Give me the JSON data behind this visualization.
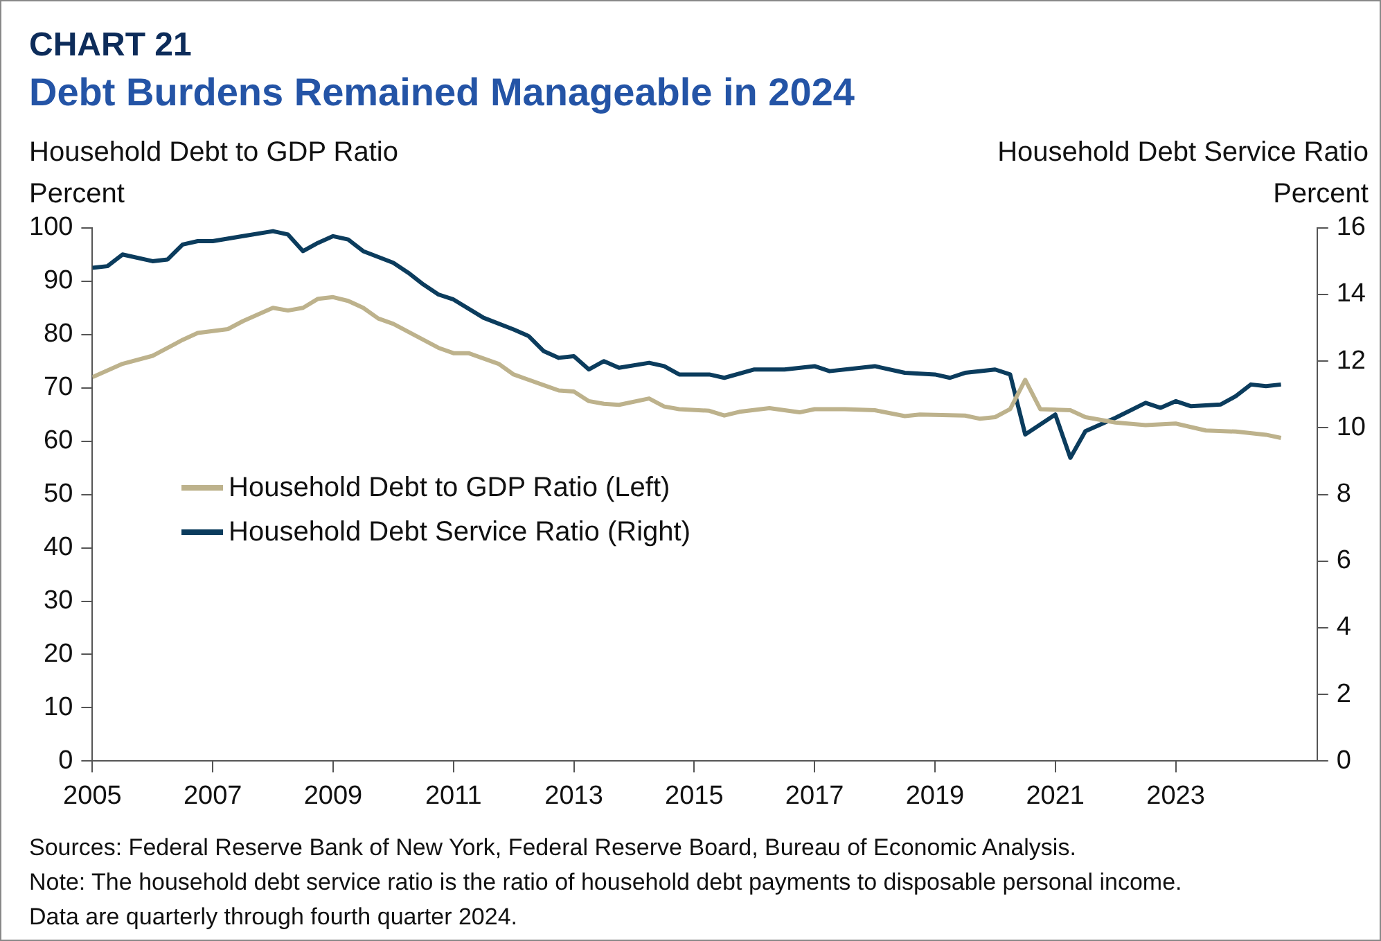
{
  "chart_data": {
    "type": "line",
    "title": "CHART 21",
    "subtitle": "Debt Burdens Remained Manageable in 2024",
    "ylabel": "Household Debt to GDP Ratio\nPercent",
    "y2label": "Household Debt Service Ratio\nPercent",
    "xlim": [
      2005,
      2025.35
    ],
    "xticks": [
      2005,
      2007,
      2009,
      2011,
      2013,
      2015,
      2017,
      2019,
      2021,
      2023
    ],
    "ylim": [
      0,
      100
    ],
    "yticks": [
      0,
      10,
      20,
      30,
      40,
      50,
      60,
      70,
      80,
      90,
      100
    ],
    "y2lim": [
      0,
      16
    ],
    "y2ticks": [
      0,
      2,
      4,
      6,
      8,
      10,
      12,
      14,
      16
    ],
    "grid": false,
    "legend": "left",
    "series": [
      {
        "name": "Household Debt to GDP Ratio (Left)",
        "color": "#bdb28c",
        "x": [
          2005,
          2005.5,
          2006,
          2006.5,
          2006.75,
          2007.25,
          2007.5,
          2008,
          2008.25,
          2008.5,
          2008.75,
          2009,
          2009.25,
          2009.5,
          2009.75,
          2010,
          2010.5,
          2010.75,
          2011,
          2011.25,
          2011.75,
          2012,
          2012.5,
          2012.75,
          2013,
          2013.25,
          2013.5,
          2013.75,
          2014.25,
          2014.5,
          2014.75,
          2015.25,
          2015.5,
          2015.75,
          2016.25,
          2016.75,
          2017,
          2017.5,
          2018,
          2018.5,
          2018.75,
          2019.5,
          2019.75,
          2020,
          2020.25,
          2020.5,
          2020.75,
          2021.25,
          2021.5,
          2022,
          2022.5,
          2023,
          2023.5,
          2024,
          2024.5,
          2024.75
        ],
        "values": [
          72,
          74.5,
          76,
          79,
          80.3,
          81,
          82.5,
          85,
          84.5,
          85,
          86.7,
          87,
          86.3,
          85,
          83,
          82,
          79,
          77.5,
          76.5,
          76.5,
          74.5,
          72.5,
          70.5,
          69.5,
          69.3,
          67.5,
          67,
          66.8,
          68,
          66.5,
          66,
          65.7,
          64.8,
          65.5,
          66.2,
          65.4,
          66,
          66,
          65.8,
          64.7,
          65,
          64.8,
          64.2,
          64.5,
          66,
          71.5,
          66,
          65.8,
          64.5,
          63.5,
          63,
          63.3,
          62,
          61.8,
          61.2,
          60.6
        ]
      },
      {
        "name": "Household Debt Service Ratio (Right)",
        "color": "#0b3c5d",
        "axis": "y2",
        "x": [
          2005,
          2005.25,
          2005.5,
          2006,
          2006.25,
          2006.5,
          2006.75,
          2007,
          2007.5,
          2008,
          2008.25,
          2008.5,
          2008.75,
          2009,
          2009.25,
          2009.5,
          2010,
          2010.25,
          2010.5,
          2010.75,
          2011,
          2011.5,
          2012,
          2012.25,
          2012.5,
          2012.75,
          2013,
          2013.25,
          2013.5,
          2013.75,
          2014.25,
          2014.5,
          2014.75,
          2015.25,
          2015.5,
          2016,
          2016.5,
          2017,
          2017.25,
          2018,
          2018.5,
          2019,
          2019.25,
          2019.5,
          2020,
          2020.25,
          2020.5,
          2021,
          2021.25,
          2021.5,
          2022,
          2022.5,
          2022.75,
          2023,
          2023.25,
          2023.75,
          2024,
          2024.25,
          2024.5,
          2024.75
        ],
        "values": [
          14.8,
          14.85,
          15.2,
          15,
          15.05,
          15.5,
          15.6,
          15.6,
          15.75,
          15.9,
          15.8,
          15.3,
          15.55,
          15.75,
          15.65,
          15.3,
          14.95,
          14.65,
          14.3,
          14,
          13.85,
          13.3,
          12.95,
          12.75,
          12.3,
          12.1,
          12.15,
          11.75,
          12,
          11.8,
          11.95,
          11.85,
          11.6,
          11.6,
          11.5,
          11.75,
          11.75,
          11.85,
          11.7,
          11.85,
          11.65,
          11.6,
          11.5,
          11.65,
          11.75,
          11.6,
          9.8,
          10.4,
          9.1,
          9.9,
          10.3,
          10.75,
          10.6,
          10.8,
          10.65,
          10.7,
          10.95,
          11.3,
          11.25,
          11.3
        ]
      }
    ],
    "annotations": [
      "Sources: Federal Reserve Bank of New York, Federal Reserve Board, Bureau of Economic Analysis.",
      "Note: The household debt service ratio is the ratio of household debt payments to disposable personal income.",
      "Data are quarterly through fourth quarter 2024."
    ]
  }
}
